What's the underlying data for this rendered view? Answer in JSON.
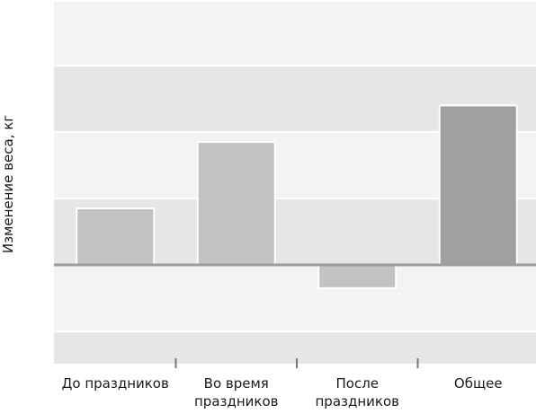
{
  "chart_data": {
    "type": "bar",
    "title": "",
    "xlabel": "",
    "ylabel": "Изменение веса, кг",
    "categories": [
      [
        "До праздников"
      ],
      [
        "Во время",
        "праздников"
      ],
      [
        "После",
        "праздников"
      ],
      [
        "Общее"
      ]
    ],
    "values": [
      0.85,
      1.85,
      -0.35,
      2.4
    ],
    "ylim": [
      -1.4,
      3.9
    ],
    "grid": true,
    "legend": "none",
    "colors": {
      "bar": "#c3c1c2",
      "bar_total": "#a19fa0",
      "band_dark": "#e6e6e6",
      "band_light": "#f3f3f3",
      "zero_line": "#9c9c9c",
      "tick_mark": "#7a7a7a"
    }
  }
}
